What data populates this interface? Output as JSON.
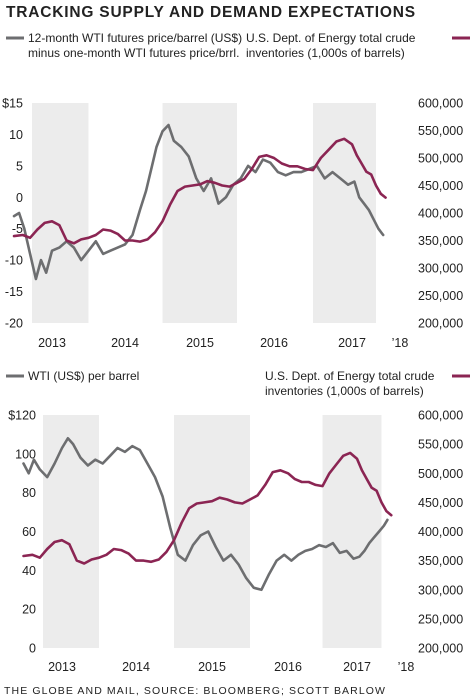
{
  "title": "TRACKING SUPPLY AND DEMAND EXPECTATIONS",
  "source": "THE GLOBE AND MAIL, SOURCE: BLOOMBERG; SCOTT BARLOW",
  "colors": {
    "grey_series": "#6d6e70",
    "maroon_series": "#8b2553",
    "shade": "#ececec",
    "text": "#222222"
  },
  "chart_data": [
    {
      "type": "line",
      "x_tick_labels": [
        "2013",
        "2014",
        "2015",
        "2016",
        "2017",
        "’18"
      ],
      "shaded_years": [
        "2013",
        "2015",
        "2017"
      ],
      "left_axis": {
        "ticks": [
          15,
          10,
          5,
          0,
          -5,
          -10,
          -15,
          -20
        ],
        "tick_labels": [
          "$15",
          "10",
          "5",
          "0",
          "-5",
          "-10",
          "-15",
          "-20"
        ],
        "ylim": [
          -20,
          15
        ]
      },
      "right_axis": {
        "ticks": [
          600000,
          550000,
          500000,
          450000,
          400000,
          350000,
          300000,
          250000,
          200000
        ],
        "tick_labels": [
          "600,000",
          "550,000",
          "500,000",
          "450,000",
          "400,000",
          "350,000",
          "300,000",
          "250,000",
          "200,000"
        ],
        "ylim": [
          200000,
          600000
        ]
      },
      "series": [
        {
          "name": "12-month WTI futures price/barrel (US$) minus one-month WTI futures price/brrl.",
          "legend_lines": [
            "12-month WTI futures price/barrel (US$)",
            "minus one-month WTI futures price/brrl."
          ],
          "axis": "left",
          "color": "#6d6e70",
          "x": [
            2012.98,
            2013.05,
            2013.12,
            2013.2,
            2013.28,
            2013.35,
            2013.42,
            2013.5,
            2013.6,
            2013.7,
            2013.8,
            2013.9,
            2014.0,
            2014.1,
            2014.2,
            2014.3,
            2014.4,
            2014.5,
            2014.6,
            2014.7,
            2014.78,
            2014.86,
            2014.92,
            2015.0,
            2015.08,
            2015.15,
            2015.25,
            2015.35,
            2015.45,
            2015.55,
            2015.65,
            2015.75,
            2015.85,
            2015.95,
            2016.05,
            2016.15,
            2016.25,
            2016.35,
            2016.45,
            2016.55,
            2016.65,
            2016.75,
            2016.85,
            2016.95,
            2017.05,
            2017.15,
            2017.25,
            2017.35,
            2017.45,
            2017.55,
            2017.65,
            2017.75,
            2017.85,
            2017.95,
            2018.05,
            2018.15
          ],
          "values": [
            -3,
            -2.5,
            -5,
            -9,
            -13,
            -10,
            -12,
            -8.5,
            -8,
            -7,
            -8,
            -10,
            -8.5,
            -7,
            -9,
            -8.5,
            -8,
            -7.5,
            -6,
            -2,
            1,
            5,
            8,
            10.5,
            11.5,
            9,
            8,
            6.5,
            3,
            1,
            3,
            -1,
            0,
            2,
            3,
            5,
            4,
            6,
            5.5,
            4,
            3.5,
            4,
            4,
            4.5,
            5,
            3,
            4,
            3,
            2,
            2.5,
            0,
            -1,
            -2,
            -3.5,
            -5,
            -6
          ]
        },
        {
          "name": "U.S. Dept. of Energy total crude inventories (1,000s of barrels)",
          "legend_lines": [
            "U.S. Dept. of Energy total crude",
            "inventories (1,000s of barrels)"
          ],
          "axis": "right",
          "color": "#8b2553",
          "x": [
            2012.98,
            2013.1,
            2013.2,
            2013.3,
            2013.4,
            2013.5,
            2013.6,
            2013.7,
            2013.8,
            2013.9,
            2014.0,
            2014.1,
            2014.2,
            2014.3,
            2014.4,
            2014.5,
            2014.6,
            2014.7,
            2014.8,
            2014.9,
            2015.0,
            2015.1,
            2015.2,
            2015.3,
            2015.4,
            2015.5,
            2015.6,
            2015.7,
            2015.8,
            2015.9,
            2016.0,
            2016.1,
            2016.2,
            2016.3,
            2016.4,
            2016.5,
            2016.6,
            2016.7,
            2016.8,
            2016.9,
            2017.0,
            2017.1,
            2017.2,
            2017.3,
            2017.4,
            2017.5,
            2017.6,
            2017.7,
            2017.8,
            2017.9,
            2018.0,
            2018.1,
            2018.2
          ],
          "values": [
            358000,
            360000,
            355000,
            370000,
            382000,
            385000,
            378000,
            350000,
            345000,
            352000,
            355000,
            360000,
            370000,
            368000,
            362000,
            350000,
            350000,
            348000,
            352000,
            365000,
            385000,
            415000,
            440000,
            448000,
            450000,
            452000,
            458000,
            455000,
            450000,
            448000,
            455000,
            462000,
            480000,
            502000,
            505000,
            500000,
            490000,
            485000,
            485000,
            480000,
            478000,
            500000,
            515000,
            530000,
            535000,
            525000,
            505000,
            490000,
            475000,
            470000,
            450000,
            435000,
            428000
          ]
        }
      ]
    },
    {
      "type": "line",
      "x_tick_labels": [
        "2013",
        "2014",
        "2015",
        "2016",
        "2017",
        "’18"
      ],
      "shaded_years": [
        "2013",
        "2015",
        "2017"
      ],
      "left_axis": {
        "ticks": [
          120,
          100,
          80,
          60,
          40,
          20,
          0
        ],
        "tick_labels": [
          "$120",
          "100",
          "80",
          "60",
          "40",
          "20",
          "0"
        ],
        "ylim": [
          0,
          120
        ]
      },
      "right_axis": {
        "ticks": [
          600000,
          550000,
          500000,
          450000,
          400000,
          350000,
          300000,
          250000,
          200000
        ],
        "tick_labels": [
          "600,000",
          "550,000",
          "500,000",
          "450,000",
          "400,000",
          "350,000",
          "300,000",
          "250,000",
          "200,000"
        ],
        "ylim": [
          200000,
          600000
        ]
      },
      "series": [
        {
          "name": "WTI (US$) per barrel",
          "legend_lines": [
            "WTI (US$) per barrel"
          ],
          "axis": "left",
          "color": "#6d6e70",
          "x": [
            2012.98,
            2013.05,
            2013.12,
            2013.2,
            2013.3,
            2013.4,
            2013.5,
            2013.58,
            2013.65,
            2013.75,
            2013.85,
            2013.95,
            2014.05,
            2014.15,
            2014.25,
            2014.35,
            2014.45,
            2014.55,
            2014.65,
            2014.75,
            2014.85,
            2014.95,
            2015.05,
            2015.15,
            2015.25,
            2015.35,
            2015.45,
            2015.55,
            2015.65,
            2015.75,
            2015.85,
            2015.95,
            2016.05,
            2016.15,
            2016.25,
            2016.35,
            2016.45,
            2016.55,
            2016.65,
            2016.75,
            2016.85,
            2016.95,
            2017.05,
            2017.15,
            2017.25,
            2017.35,
            2017.45,
            2017.55,
            2017.65,
            2017.75,
            2017.85,
            2017.95,
            2018.05,
            2018.12
          ],
          "values": [
            95,
            90,
            97,
            92,
            88,
            95,
            103,
            108,
            105,
            98,
            94,
            97,
            95,
            99,
            103,
            101,
            104,
            102,
            95,
            88,
            78,
            62,
            48,
            45,
            53,
            58,
            60,
            52,
            45,
            48,
            43,
            36,
            31,
            30,
            38,
            45,
            48,
            45,
            48,
            50,
            51,
            53,
            52,
            54,
            49,
            50,
            46,
            47,
            50,
            54,
            57,
            60,
            63,
            66
          ]
        },
        {
          "name": "U.S. Dept. of Energy total crude inventories (1,000s of barrels)",
          "legend_lines": [
            "U.S. Dept. of Energy total crude",
            "inventories (1,000s of barrels)"
          ],
          "axis": "right",
          "color": "#8b2553",
          "x": [
            2012.98,
            2013.1,
            2013.2,
            2013.3,
            2013.4,
            2013.5,
            2013.6,
            2013.7,
            2013.8,
            2013.9,
            2014.0,
            2014.1,
            2014.2,
            2014.3,
            2014.4,
            2014.5,
            2014.6,
            2014.7,
            2014.8,
            2014.9,
            2015.0,
            2015.1,
            2015.2,
            2015.3,
            2015.4,
            2015.5,
            2015.6,
            2015.7,
            2015.8,
            2015.9,
            2016.0,
            2016.1,
            2016.2,
            2016.3,
            2016.4,
            2016.5,
            2016.6,
            2016.7,
            2016.8,
            2016.9,
            2017.0,
            2017.1,
            2017.2,
            2017.3,
            2017.4,
            2017.5,
            2017.6,
            2017.7,
            2017.8,
            2017.9,
            2018.0,
            2018.1,
            2018.2
          ],
          "values": [
            358000,
            360000,
            355000,
            370000,
            382000,
            385000,
            378000,
            350000,
            345000,
            352000,
            355000,
            360000,
            370000,
            368000,
            362000,
            350000,
            350000,
            348000,
            352000,
            365000,
            385000,
            415000,
            440000,
            448000,
            450000,
            452000,
            458000,
            455000,
            450000,
            448000,
            455000,
            462000,
            480000,
            502000,
            505000,
            500000,
            490000,
            485000,
            485000,
            480000,
            478000,
            500000,
            515000,
            530000,
            535000,
            525000,
            505000,
            490000,
            475000,
            470000,
            450000,
            435000,
            428000
          ]
        }
      ]
    }
  ]
}
